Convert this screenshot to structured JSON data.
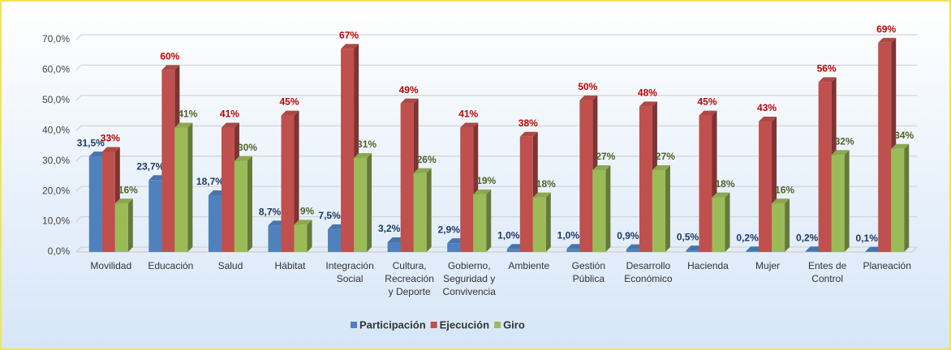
{
  "chart_data": {
    "type": "bar3d",
    "categories": [
      "Movilidad",
      "Educación",
      "Salud",
      "Hábitat",
      "Integración\nSocial",
      "Cultura,\nRecreación\ny Deporte",
      "Gobierno,\nSeguridad y\nConvivencia",
      "Ambiente",
      "Gestión\nPública",
      "Desarrollo\nEconómico",
      "Hacienda",
      "Mujer",
      "Entes de\nControl",
      "Planeación"
    ],
    "series": [
      {
        "name": "Participación",
        "color": "#4f81bd",
        "label_color": "#1f3864",
        "values": [
          31.5,
          23.7,
          18.7,
          8.7,
          7.5,
          3.2,
          2.9,
          1.0,
          1.0,
          0.9,
          0.5,
          0.2,
          0.2,
          0.1
        ],
        "value_labels": [
          "31,5%",
          "23,7%",
          "18,7%",
          "8,7%",
          "7,5%",
          "3,2%",
          "2,9%",
          "1,0%",
          "1,0%",
          "0,9%",
          "0,5%",
          "0,2%",
          "0,2%",
          "0,1%"
        ]
      },
      {
        "name": "Ejecución",
        "color": "#c0504d",
        "label_color": "#c00000",
        "values": [
          33,
          60,
          41,
          45,
          67,
          49,
          41,
          38,
          50,
          48,
          45,
          43,
          56,
          69
        ],
        "value_labels": [
          "33%",
          "60%",
          "41%",
          "45%",
          "67%",
          "49%",
          "41%",
          "38%",
          "50%",
          "48%",
          "45%",
          "43%",
          "56%",
          "69%"
        ]
      },
      {
        "name": "Giro",
        "color": "#9bbb59",
        "label_color": "#4f6228",
        "values": [
          16,
          41,
          30,
          9,
          31,
          26,
          19,
          18,
          27,
          27,
          18,
          16,
          32,
          34
        ],
        "value_labels": [
          "16%",
          "41%",
          "30%",
          "9%",
          "31%",
          "26%",
          "19%",
          "18%",
          "27%",
          "27%",
          "18%",
          "16%",
          "32%",
          "34%"
        ]
      }
    ],
    "ylim": [
      0,
      70
    ],
    "yticks": [
      {
        "value": 0,
        "label": "0,0%"
      },
      {
        "value": 10,
        "label": "10,0%"
      },
      {
        "value": 20,
        "label": "20,0%"
      },
      {
        "value": 30,
        "label": "30,0%"
      },
      {
        "value": 40,
        "label": "40,0%"
      },
      {
        "value": 50,
        "label": "50,0%"
      },
      {
        "value": 60,
        "label": "60,0%"
      },
      {
        "value": 70,
        "label": "70,0%"
      }
    ],
    "grid": true,
    "legend": "bottom"
  }
}
